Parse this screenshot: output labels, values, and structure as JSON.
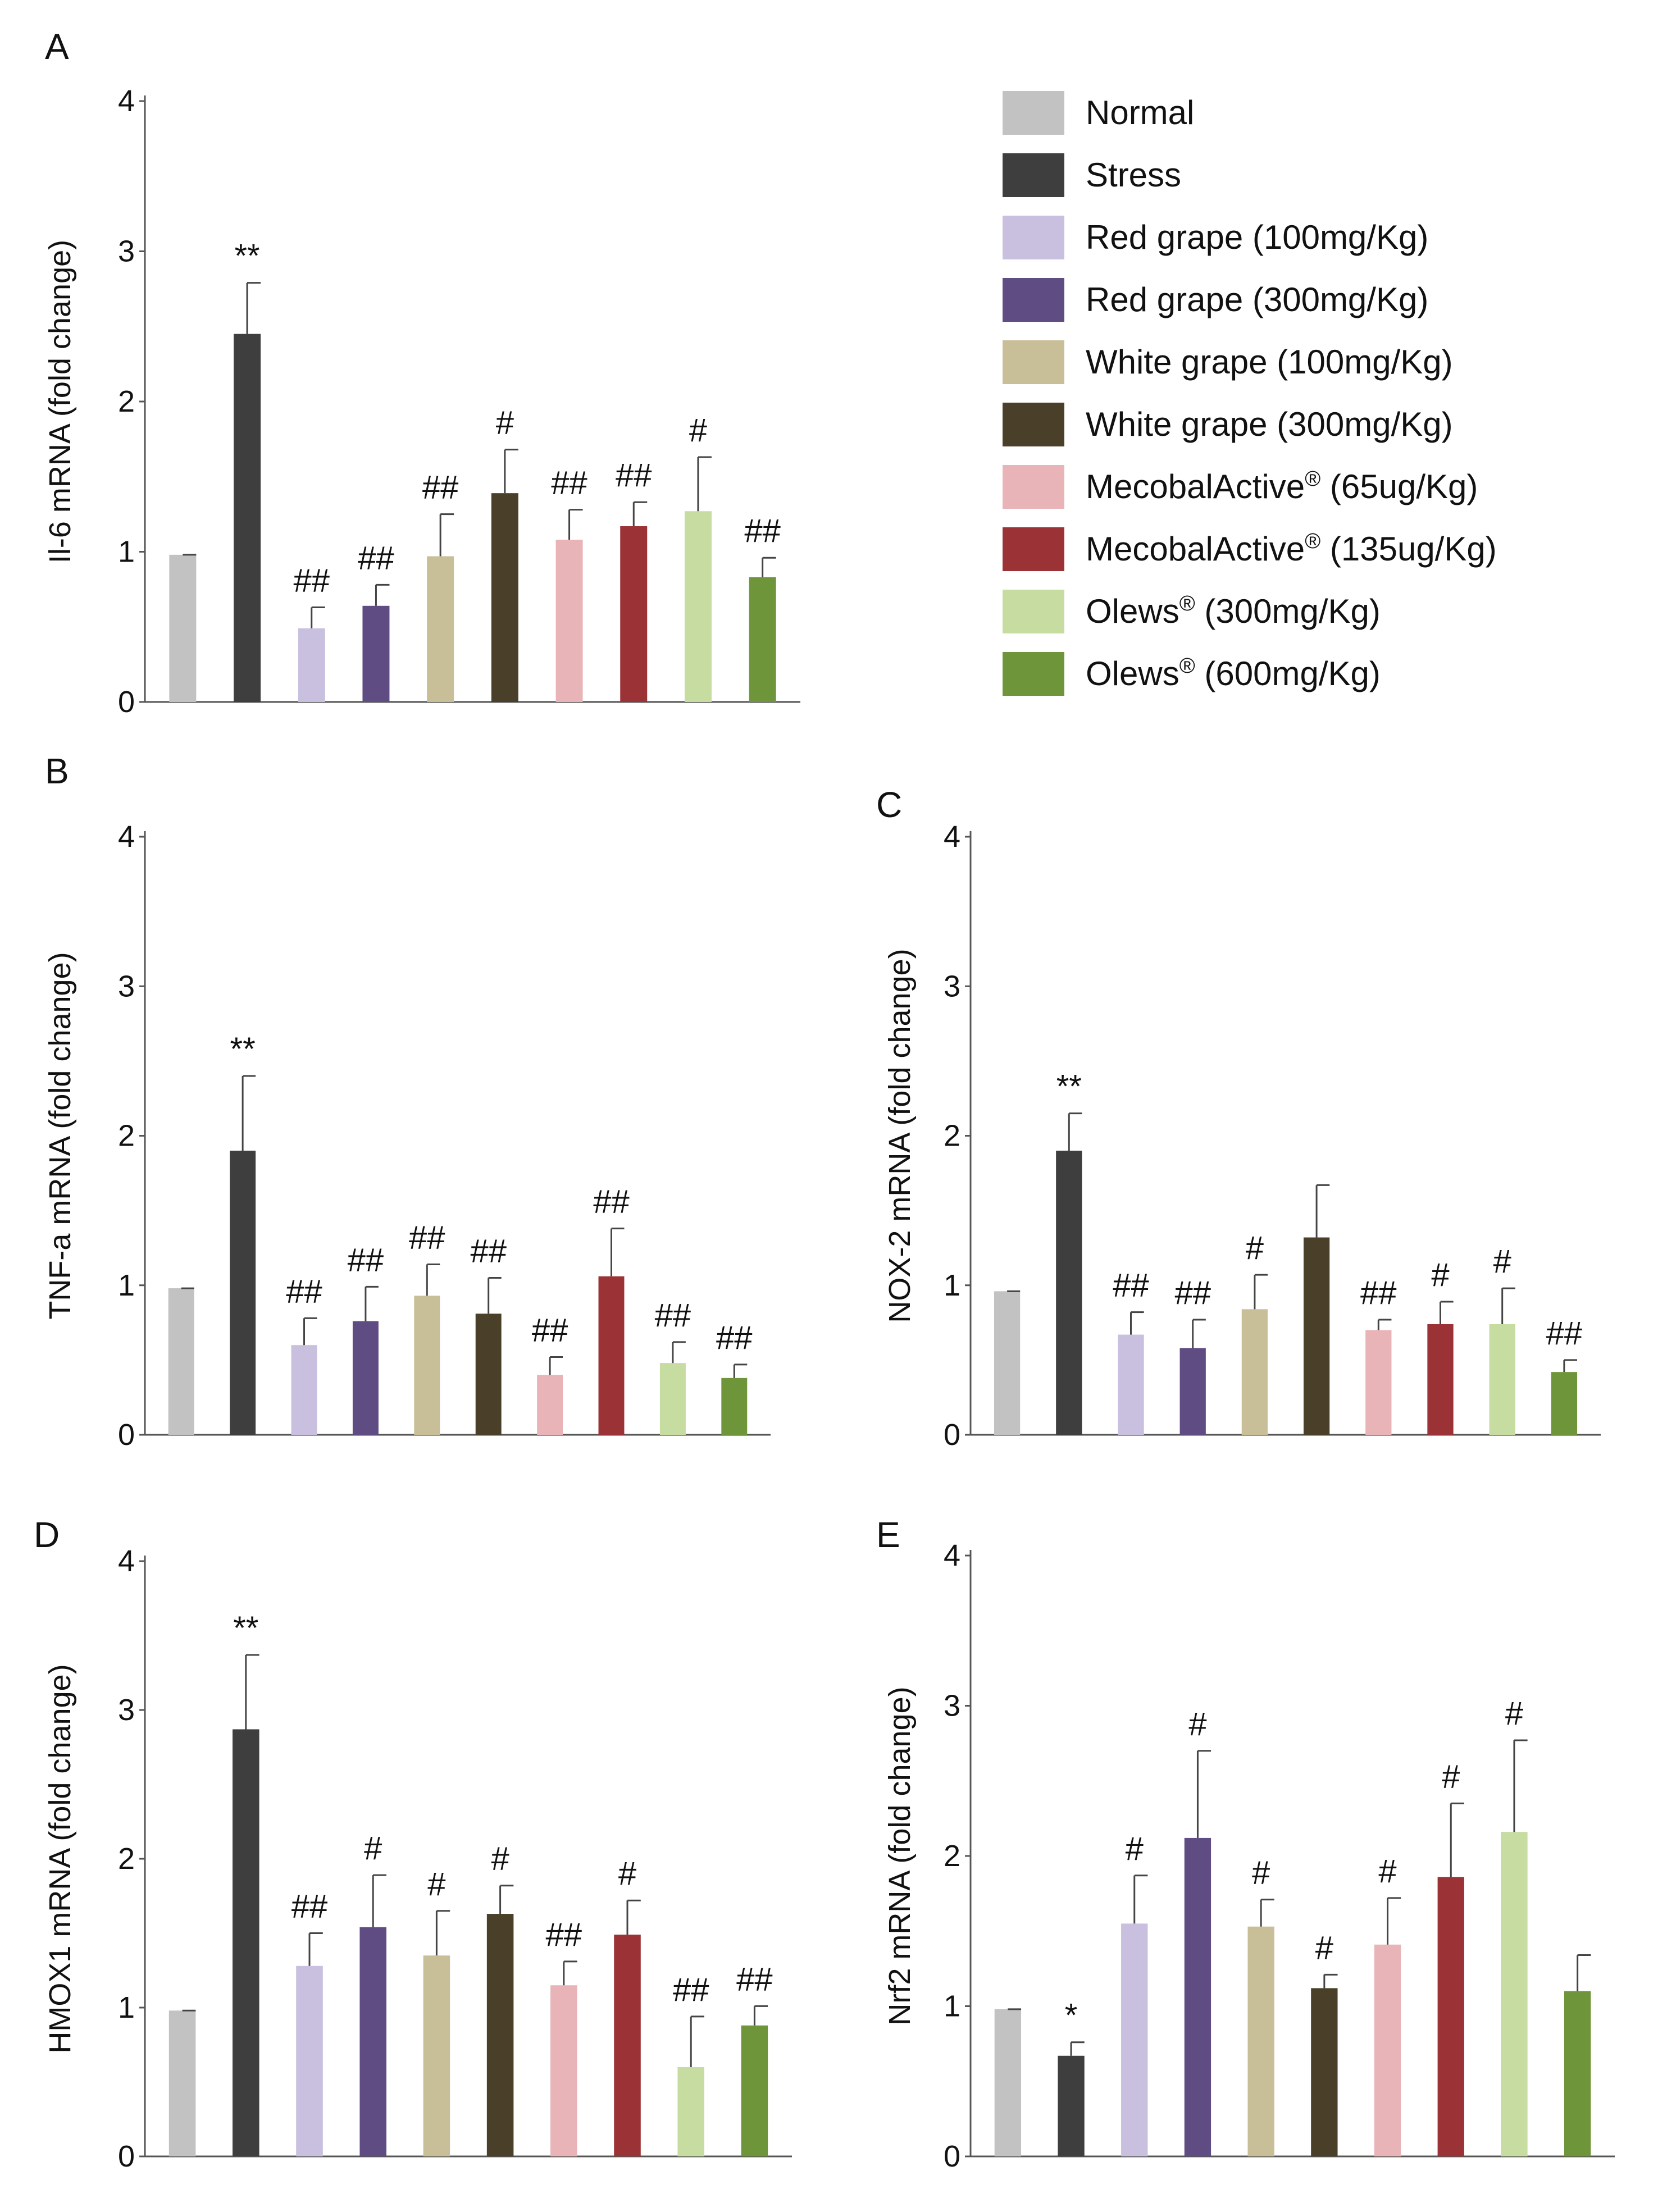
{
  "figure": {
    "groups": [
      {
        "name": "Normal",
        "sup": "",
        "suffix": "",
        "color": "#c2c2c2"
      },
      {
        "name": "Stress",
        "sup": "",
        "suffix": "",
        "color": "#3e3e3e"
      },
      {
        "name": "Red grape (100mg/Kg)",
        "sup": "",
        "suffix": "",
        "color": "#c9bfdf"
      },
      {
        "name": "Red grape (300mg/Kg)",
        "sup": "",
        "suffix": "",
        "color": "#5e4c82"
      },
      {
        "name": "White grape (100mg/Kg)",
        "sup": "",
        "suffix": "",
        "color": "#c8bf98"
      },
      {
        "name": "White grape (300mg/Kg)",
        "sup": "",
        "suffix": "",
        "color": "#4a3f29"
      },
      {
        "name": "MecobalActive",
        "sup": "®",
        "suffix": " (65ug/Kg)",
        "color": "#e8b4b7"
      },
      {
        "name": "MecobalActive",
        "sup": "®",
        "suffix": " (135ug/Kg)",
        "color": "#9b3336"
      },
      {
        "name": "Olews",
        "sup": "®",
        "suffix": " (300mg/Kg)",
        "color": "#c6dca1"
      },
      {
        "name": "Olews",
        "sup": "®",
        "suffix": " (600mg/Kg)",
        "color": "#6f953b"
      }
    ]
  },
  "chart_data": [
    {
      "panel": "A",
      "type": "bar",
      "ylabel": "Il-6 mRNA  (fold change)",
      "ylim": [
        0,
        4
      ],
      "yticks": [
        "0",
        "1",
        "2",
        "3",
        "4"
      ],
      "values": [
        0.98,
        2.45,
        0.49,
        0.64,
        0.97,
        1.39,
        1.08,
        1.17,
        1.27,
        0.83
      ],
      "errors": [
        0,
        0.34,
        0.14,
        0.14,
        0.28,
        0.29,
        0.2,
        0.16,
        0.36,
        0.13
      ],
      "significance": [
        "",
        "**",
        "##",
        "##",
        "##",
        "#",
        "##",
        "##",
        "#",
        "##"
      ]
    },
    {
      "panel": "B",
      "type": "bar",
      "ylabel": "TNF-a mRNA  (fold change)",
      "ylim": [
        0,
        4
      ],
      "yticks": [
        "0",
        "1",
        "2",
        "3",
        "4"
      ],
      "values": [
        0.98,
        1.9,
        0.6,
        0.76,
        0.93,
        0.81,
        0.4,
        1.06,
        0.48,
        0.38
      ],
      "errors": [
        0,
        0.5,
        0.18,
        0.23,
        0.21,
        0.24,
        0.12,
        0.32,
        0.14,
        0.09
      ],
      "significance": [
        "",
        "**",
        "##",
        "##",
        "##",
        "##",
        "##",
        "##",
        "##",
        "##"
      ]
    },
    {
      "panel": "C",
      "type": "bar",
      "ylabel": "NOX-2 mRNA  (fold change)",
      "ylim": [
        0,
        4
      ],
      "yticks": [
        "0",
        "1",
        "2",
        "3",
        "4"
      ],
      "values": [
        0.96,
        1.9,
        0.67,
        0.58,
        0.84,
        1.32,
        0.7,
        0.74,
        0.74,
        0.42
      ],
      "errors": [
        0,
        0.25,
        0.15,
        0.19,
        0.23,
        0.35,
        0.07,
        0.15,
        0.24,
        0.08
      ],
      "significance": [
        "",
        "**",
        "##",
        "##",
        "#",
        "",
        "##",
        "#",
        "#",
        "##"
      ]
    },
    {
      "panel": "D",
      "type": "bar",
      "ylabel": "HMOX1 mRNA  (fold change)",
      "ylim": [
        0,
        4
      ],
      "yticks": [
        "0",
        "1",
        "2",
        "3",
        "4"
      ],
      "values": [
        0.98,
        2.87,
        1.28,
        1.54,
        1.35,
        1.63,
        1.15,
        1.49,
        0.6,
        0.88
      ],
      "errors": [
        0,
        0.5,
        0.22,
        0.35,
        0.3,
        0.19,
        0.16,
        0.23,
        0.34,
        0.13
      ],
      "significance": [
        "",
        "**",
        "##",
        "#",
        "#",
        "#",
        "##",
        "#",
        "##",
        "##"
      ]
    },
    {
      "panel": "E",
      "type": "bar",
      "ylabel": "Nrf2 mRNA  (fold change)",
      "ylim": [
        0,
        4
      ],
      "yticks": [
        "0",
        "1",
        "2",
        "3",
        "4"
      ],
      "values": [
        0.98,
        0.67,
        1.55,
        2.12,
        1.53,
        1.12,
        1.41,
        1.86,
        2.16,
        1.1
      ],
      "errors": [
        0,
        0.09,
        0.32,
        0.58,
        0.18,
        0.09,
        0.31,
        0.49,
        0.61,
        0.24
      ],
      "significance": [
        "",
        "*",
        "#",
        "#",
        "#",
        "#",
        "#",
        "#",
        "#",
        ""
      ]
    }
  ]
}
